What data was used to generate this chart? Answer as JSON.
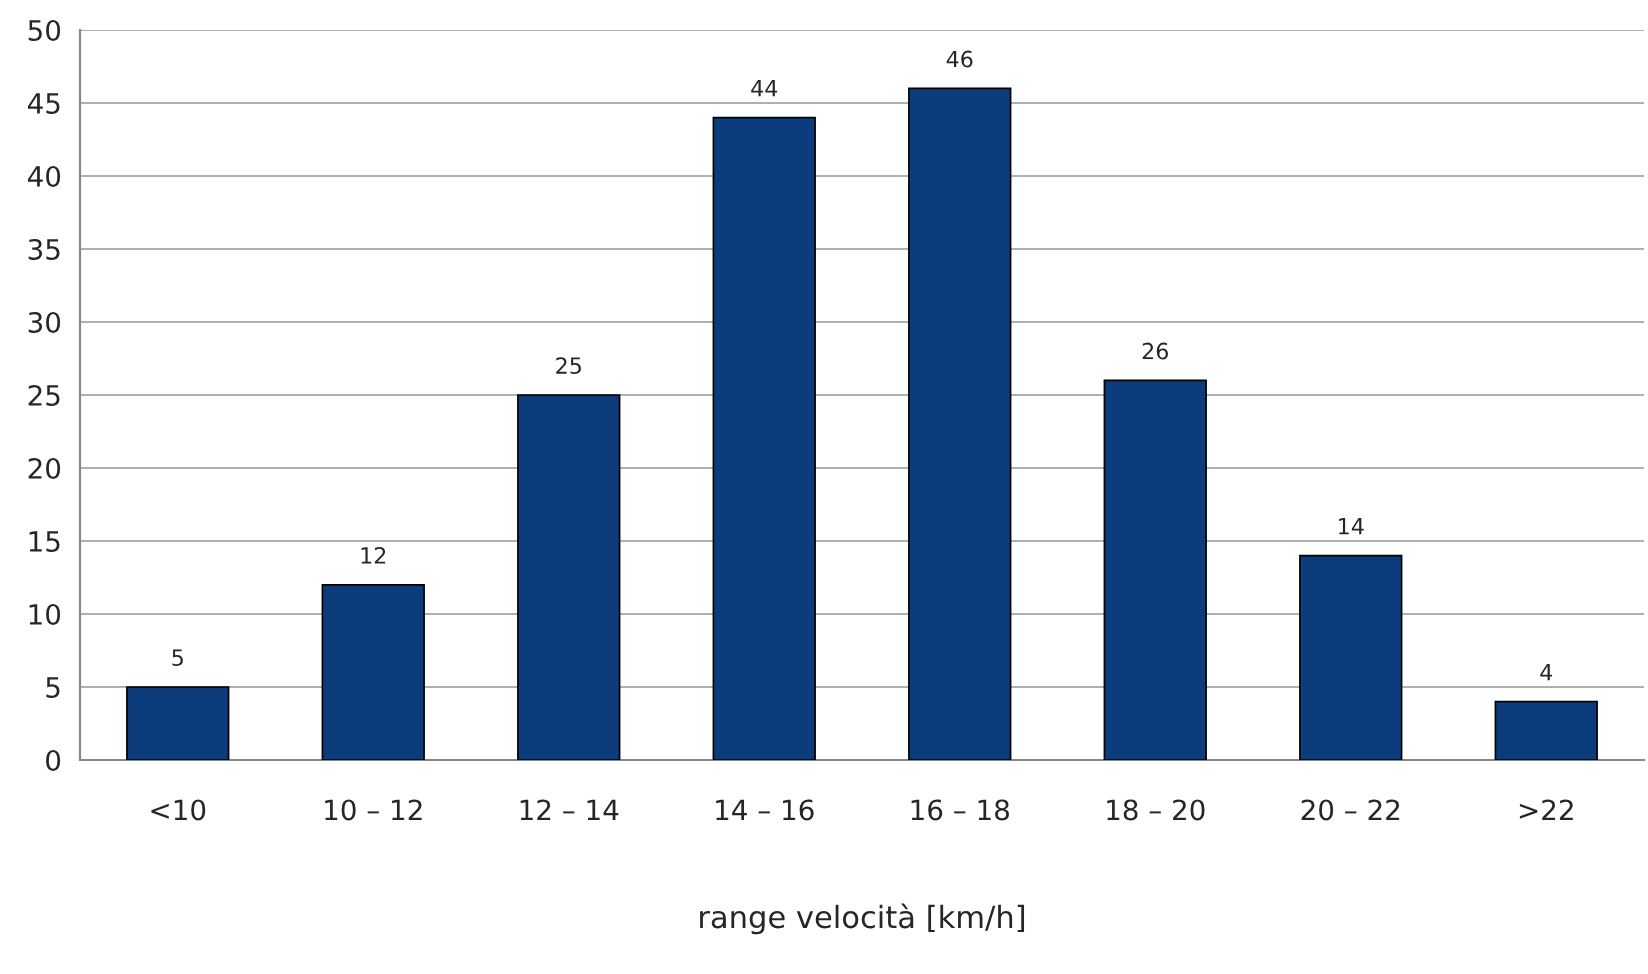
{
  "chart_data": {
    "type": "bar",
    "xlabel": "range velocità [km/h]",
    "categories": [
      "<10",
      "10 – 12",
      "12 – 14",
      "14 – 16",
      "16 – 18",
      "18 – 20",
      "20 – 22",
      ">22"
    ],
    "values": [
      5,
      12,
      25,
      44,
      46,
      26,
      14,
      4
    ],
    "color": "#0c3c7c",
    "ylim": [
      0,
      50
    ],
    "yticks": [
      0,
      5,
      10,
      15,
      20,
      25,
      30,
      35,
      40,
      45,
      50
    ],
    "grid": "y",
    "data_labels": true,
    "legend": false
  }
}
